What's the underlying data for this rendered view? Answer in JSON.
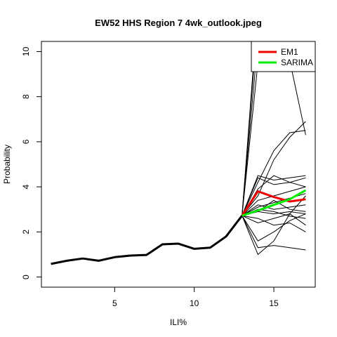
{
  "chart_data": {
    "type": "line",
    "title": "EW52 HHS Region 7 4wk_outlook.jpeg",
    "xlabel": "ILI%",
    "ylabel": "Probability",
    "xlim": [
      0.4,
      17.6
    ],
    "ylim": [
      -0.45,
      10.45
    ],
    "xticks": [
      5,
      10,
      15
    ],
    "yticks": [
      0,
      2,
      4,
      6,
      8,
      10
    ],
    "xtick_labels": [
      "5",
      "10",
      "15"
    ],
    "ytick_labels": [
      "0",
      "2",
      "4",
      "6",
      "8",
      "10"
    ],
    "grid": false,
    "legend": {
      "position": "top-right",
      "entries": [
        {
          "name": "EM1",
          "color": "#ee0000"
        },
        {
          "name": "SARIMA",
          "color": "#00ee00"
        }
      ]
    },
    "history": {
      "color": "#000000",
      "x": [
        1,
        2,
        3,
        4,
        5,
        6,
        7,
        8,
        9,
        10,
        11,
        12,
        13
      ],
      "y": [
        0.58,
        0.72,
        0.82,
        0.72,
        0.88,
        0.95,
        0.98,
        1.45,
        1.48,
        1.25,
        1.3,
        1.8,
        2.72
      ]
    },
    "forecast_x": [
      13,
      14,
      15,
      16,
      17
    ],
    "ensemble": [
      [
        2.72,
        11.5,
        12,
        12,
        12
      ],
      [
        2.72,
        10.5,
        11,
        11,
        11
      ],
      [
        2.72,
        9.5,
        12,
        12,
        12
      ],
      [
        2.72,
        12,
        12,
        9.6,
        6.3
      ],
      [
        2.72,
        4.2,
        5.6,
        6.4,
        6.5
      ],
      [
        2.72,
        3.6,
        5.2,
        6.2,
        6.9
      ],
      [
        2.72,
        4.5,
        4.3,
        4.4,
        4.5
      ],
      [
        2.72,
        4.4,
        4.1,
        4.2,
        4.4
      ],
      [
        2.72,
        3.9,
        4.5,
        4.2,
        4.0
      ],
      [
        2.72,
        3.4,
        3.6,
        3.8,
        4.0
      ],
      [
        2.72,
        3.1,
        3.3,
        3.5,
        3.7
      ],
      [
        2.72,
        3.2,
        3.0,
        3.1,
        3.2
      ],
      [
        2.72,
        2.9,
        3.4,
        3.0,
        2.9
      ],
      [
        2.72,
        2.9,
        2.8,
        2.9,
        2.8
      ],
      [
        2.72,
        3.0,
        2.9,
        2.7,
        2.6
      ],
      [
        2.72,
        2.4,
        2.6,
        2.8,
        2.3
      ],
      [
        2.72,
        2.6,
        2.3,
        2.4,
        2.0
      ],
      [
        2.72,
        1.6,
        2.0,
        2.5,
        2.8
      ],
      [
        2.72,
        1.0,
        1.6,
        2.8,
        3.6
      ],
      [
        2.72,
        1.3,
        1.4,
        1.3,
        1.2
      ]
    ],
    "series": [
      {
        "name": "EM1",
        "color": "#ee0000",
        "x": [
          13,
          14,
          15,
          16,
          17
        ],
        "values": [
          2.72,
          3.8,
          3.55,
          3.35,
          3.45
        ]
      },
      {
        "name": "SARIMA",
        "color": "#00ee00",
        "x": [
          13,
          14,
          15,
          16,
          17
        ],
        "values": [
          2.72,
          2.95,
          3.2,
          3.45,
          3.85
        ]
      }
    ]
  }
}
